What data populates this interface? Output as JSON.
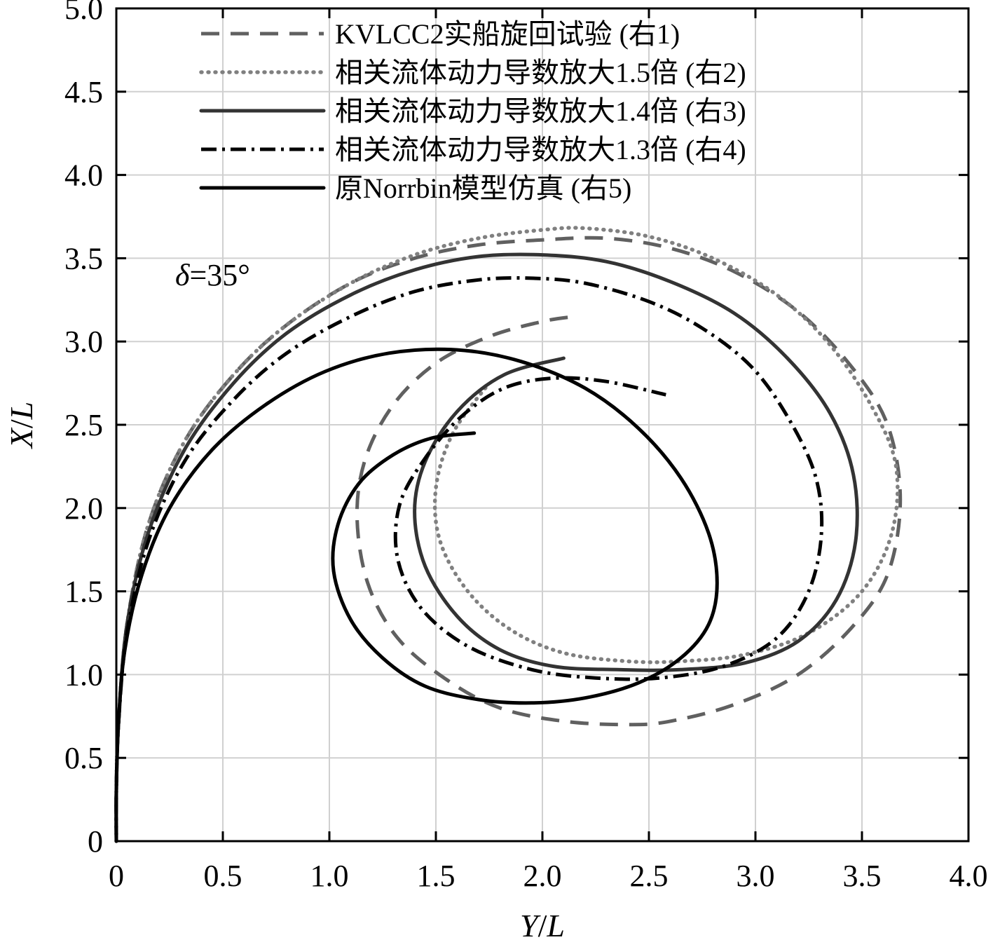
{
  "chart_data": {
    "type": "line",
    "title": "",
    "xlabel_var": "Y",
    "xlabel_sep": "/",
    "xlabel_den": "L",
    "ylabel_var": "X",
    "ylabel_sep": "/",
    "ylabel_den": "L",
    "xlim": [
      0,
      4.0
    ],
    "ylim": [
      0,
      5.0
    ],
    "x_ticks": [
      0,
      0.5,
      1.0,
      1.5,
      2.0,
      2.5,
      3.0,
      3.5,
      4.0
    ],
    "y_ticks": [
      0,
      0.5,
      1.0,
      1.5,
      2.0,
      2.5,
      3.0,
      3.5,
      4.0,
      4.5,
      5.0
    ],
    "x_tick_labels": [
      "0",
      "0.5",
      "1.0",
      "1.5",
      "2.0",
      "2.5",
      "3.0",
      "3.5",
      "4.0"
    ],
    "y_tick_labels": [
      "0",
      "0.5",
      "1.0",
      "1.5",
      "2.0",
      "2.5",
      "3.0",
      "3.5",
      "4.0",
      "4.5",
      "5.0"
    ],
    "grid": true,
    "legend_position": "top",
    "annotation": {
      "symbol": "δ",
      "text": "=35°"
    },
    "series": [
      {
        "name": "KVLCC2实船旋回试验 (右1)",
        "style": "dashed",
        "color": "#606060",
        "x": [
          0,
          0,
          0.01,
          0.05,
          0.15,
          0.32,
          0.55,
          0.8,
          1.1,
          1.4,
          1.7,
          2.0,
          2.3,
          2.6,
          2.9,
          3.2,
          3.45,
          3.62,
          3.68,
          3.62,
          3.45,
          3.2,
          2.9,
          2.6,
          2.4,
          2.1,
          1.8,
          1.55,
          1.32,
          1.18,
          1.13,
          1.17,
          1.3,
          1.5,
          1.75,
          2.0,
          2.15
        ],
        "y": [
          0,
          0.3,
          0.7,
          1.3,
          1.9,
          2.4,
          2.8,
          3.1,
          3.35,
          3.5,
          3.58,
          3.61,
          3.62,
          3.56,
          3.42,
          3.18,
          2.85,
          2.5,
          2.05,
          1.6,
          1.28,
          1.0,
          0.82,
          0.72,
          0.7,
          0.72,
          0.8,
          0.97,
          1.22,
          1.55,
          1.95,
          2.3,
          2.62,
          2.87,
          3.03,
          3.12,
          3.15
        ]
      },
      {
        "name": "相关流体动力导数放大1.5倍 (右2)",
        "style": "dotted",
        "color": "#808080",
        "x": [
          0,
          0,
          0.01,
          0.05,
          0.15,
          0.32,
          0.55,
          0.8,
          1.1,
          1.4,
          1.7,
          2.0,
          2.2,
          2.5,
          2.8,
          3.1,
          3.35,
          3.55,
          3.66,
          3.64,
          3.5,
          3.25,
          2.95,
          2.65,
          2.4,
          2.1,
          1.85,
          1.65,
          1.52,
          1.5,
          1.58,
          1.75
        ],
        "y": [
          0,
          0.3,
          0.7,
          1.3,
          1.9,
          2.4,
          2.8,
          3.1,
          3.35,
          3.52,
          3.62,
          3.67,
          3.68,
          3.63,
          3.5,
          3.28,
          2.98,
          2.6,
          2.25,
          1.85,
          1.5,
          1.25,
          1.12,
          1.08,
          1.08,
          1.13,
          1.27,
          1.5,
          1.8,
          2.12,
          2.45,
          2.75
        ]
      },
      {
        "name": "相关流体动力导数放大1.4倍 (右3)",
        "style": "solid",
        "color": "#333333",
        "x": [
          0,
          0,
          0.01,
          0.05,
          0.15,
          0.32,
          0.55,
          0.8,
          1.1,
          1.4,
          1.7,
          2.0,
          2.3,
          2.6,
          2.9,
          3.15,
          3.35,
          3.46,
          3.47,
          3.38,
          3.2,
          2.95,
          2.65,
          2.35,
          2.05,
          1.8,
          1.6,
          1.45,
          1.4,
          1.45,
          1.6,
          1.82,
          2.1
        ],
        "y": [
          0,
          0.3,
          0.7,
          1.3,
          1.85,
          2.35,
          2.75,
          3.05,
          3.28,
          3.43,
          3.51,
          3.52,
          3.48,
          3.36,
          3.17,
          2.9,
          2.57,
          2.2,
          1.8,
          1.45,
          1.2,
          1.07,
          1.03,
          1.03,
          1.05,
          1.15,
          1.35,
          1.65,
          1.98,
          2.28,
          2.58,
          2.8,
          2.9
        ]
      },
      {
        "name": "相关流体动力导数放大1.3倍 (右4)",
        "style": "dashdot",
        "color": "#000000",
        "x": [
          0,
          0,
          0.01,
          0.05,
          0.15,
          0.32,
          0.55,
          0.8,
          1.1,
          1.4,
          1.7,
          1.95,
          2.2,
          2.5,
          2.75,
          2.98,
          3.15,
          3.28,
          3.31,
          3.25,
          3.1,
          2.85,
          2.55,
          2.25,
          1.95,
          1.65,
          1.43,
          1.32,
          1.33,
          1.45,
          1.62,
          1.82,
          2.05,
          2.3,
          2.58
        ],
        "y": [
          0,
          0.3,
          0.7,
          1.25,
          1.8,
          2.28,
          2.65,
          2.93,
          3.15,
          3.3,
          3.37,
          3.38,
          3.35,
          3.24,
          3.08,
          2.85,
          2.55,
          2.2,
          1.85,
          1.5,
          1.22,
          1.05,
          0.98,
          0.98,
          1.03,
          1.17,
          1.4,
          1.7,
          2.02,
          2.3,
          2.55,
          2.72,
          2.78,
          2.76,
          2.68
        ]
      },
      {
        "name": "原Norrbin模型仿真 (右5)",
        "style": "solid",
        "color": "#000000",
        "x": [
          0,
          0,
          0.01,
          0.04,
          0.12,
          0.25,
          0.45,
          0.7,
          0.98,
          1.28,
          1.6,
          1.9,
          2.2,
          2.45,
          2.65,
          2.78,
          2.82,
          2.78,
          2.65,
          2.45,
          2.2,
          1.95,
          1.7,
          1.45,
          1.25,
          1.1,
          1.02,
          1.04,
          1.14,
          1.3,
          1.48,
          1.68
        ],
        "y": [
          0,
          0.3,
          0.7,
          1.15,
          1.6,
          2.0,
          2.35,
          2.62,
          2.82,
          2.93,
          2.95,
          2.88,
          2.72,
          2.48,
          2.18,
          1.85,
          1.55,
          1.3,
          1.1,
          0.95,
          0.86,
          0.83,
          0.85,
          0.93,
          1.1,
          1.33,
          1.62,
          1.9,
          2.15,
          2.32,
          2.42,
          2.45
        ]
      }
    ]
  }
}
